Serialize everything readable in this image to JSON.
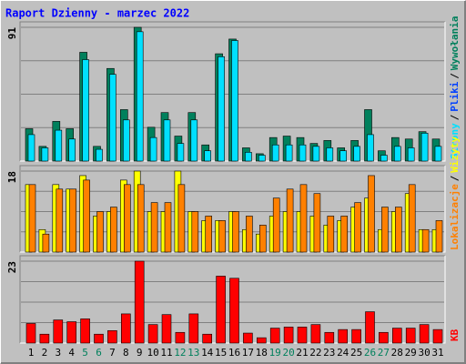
{
  "chart_data": [
    {
      "type": "bar",
      "title": "Raport Dzienny -  marzec 2022",
      "categories": [
        "1",
        "2",
        "3",
        "4",
        "5",
        "6",
        "7",
        "8",
        "9",
        "10",
        "11",
        "12",
        "13",
        "14",
        "15",
        "16",
        "17",
        "18",
        "19",
        "20",
        "21",
        "22",
        "23",
        "24",
        "25",
        "26",
        "27",
        "28",
        "29",
        "30",
        "31"
      ],
      "weekend": [
        false,
        false,
        false,
        false,
        true,
        true,
        false,
        false,
        false,
        false,
        false,
        true,
        true,
        false,
        false,
        false,
        false,
        false,
        true,
        true,
        false,
        false,
        false,
        false,
        false,
        true,
        true,
        false,
        false,
        false,
        false
      ],
      "series": [
        {
          "name": "Wywołania",
          "color": "#00805c",
          "values": [
            22,
            10,
            27,
            22,
            74,
            10,
            63,
            35,
            91,
            23,
            33,
            17,
            33,
            11,
            73,
            83,
            9,
            5,
            16,
            17,
            16,
            12,
            14,
            9,
            14,
            35,
            7,
            16,
            15,
            20,
            15
          ]
        },
        {
          "name": "Strony",
          "color": "#00e0ff",
          "values": [
            18,
            9,
            21,
            15,
            69,
            8,
            59,
            28,
            88,
            16,
            28,
            12,
            28,
            7,
            71,
            82,
            6,
            4,
            11,
            11,
            11,
            10,
            9,
            7,
            10,
            18,
            4,
            10,
            9,
            19,
            10
          ]
        }
      ],
      "extra_label": {
        "text": "Pliki",
        "color": "#0040ff"
      },
      "separator": "/",
      "ylim": [
        0,
        91
      ],
      "yticks": [
        91
      ]
    },
    {
      "type": "bar",
      "series": [
        {
          "name": "Wizyty",
          "color": "#ffff00",
          "values": [
            15,
            5,
            15,
            14,
            17,
            8,
            9,
            16,
            18,
            9,
            9,
            18,
            9,
            7,
            7,
            9,
            5,
            4,
            8,
            9,
            9,
            8,
            6,
            7,
            10,
            12,
            5,
            9,
            13,
            5,
            5
          ]
        },
        {
          "name": "Lokalizacje",
          "color": "#ff8000",
          "values": [
            15,
            4,
            14,
            14,
            16,
            9,
            10,
            15,
            15,
            11,
            11,
            15,
            9,
            8,
            7,
            9,
            8,
            6,
            12,
            14,
            15,
            13,
            8,
            8,
            11,
            17,
            10,
            10,
            15,
            5,
            7
          ]
        }
      ],
      "ylim": [
        0,
        18
      ],
      "yticks": [
        18
      ]
    },
    {
      "type": "bar",
      "series": [
        {
          "name": "KB",
          "color": "#ff0000",
          "values": [
            5.5,
            2.5,
            6.5,
            6,
            6.8,
            2.5,
            3.5,
            8.2,
            23,
            5.2,
            8,
            3,
            8.2,
            2.5,
            18.8,
            18.2,
            2.8,
            1.5,
            4.2,
            4.5,
            4.5,
            5.2,
            3,
            3.8,
            3.8,
            8.8,
            3,
            4.2,
            4.2,
            5.2,
            3.8
          ]
        }
      ],
      "ylim": [
        0,
        23
      ],
      "yticks": [
        23
      ]
    }
  ]
}
